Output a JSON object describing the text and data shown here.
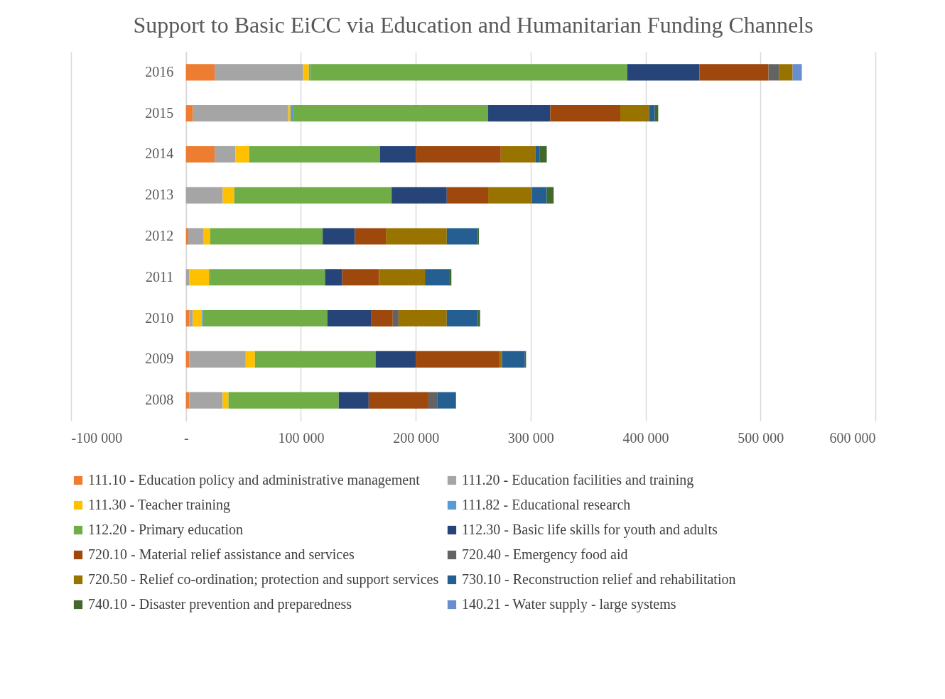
{
  "chart_data": {
    "type": "bar",
    "orientation": "horizontal",
    "stacked": true,
    "title": "Support to Basic EiCC via Education and Humanitarian Funding Channels",
    "categories": [
      "2016",
      "2015",
      "2014",
      "2013",
      "2012",
      "2011",
      "2010",
      "2009",
      "2008"
    ],
    "xlim": [
      -100000,
      600000
    ],
    "xticks": [
      {
        "value": -100000,
        "label": "-100 000"
      },
      {
        "value": 0,
        "label": "-"
      },
      {
        "value": 100000,
        "label": "100 000"
      },
      {
        "value": 200000,
        "label": "200 000"
      },
      {
        "value": 300000,
        "label": "300 000"
      },
      {
        "value": 400000,
        "label": "400 000"
      },
      {
        "value": 500000,
        "label": "500 000"
      },
      {
        "value": 600000,
        "label": "600 000"
      }
    ],
    "grid": "x",
    "legend": "bottom",
    "series": [
      {
        "name": "111.10 - Education policy and administrative management",
        "color": "#ed7d31",
        "values": [
          25000,
          6000,
          25000,
          0,
          2000,
          0,
          3000,
          3000,
          3000
        ]
      },
      {
        "name": "111.20 - Education facilities and training",
        "color": "#a5a5a5",
        "values": [
          77000,
          83000,
          18000,
          32000,
          13000,
          3000,
          3000,
          49000,
          29000
        ]
      },
      {
        "name": "111.30 - Teacher training",
        "color": "#ffc000",
        "values": [
          5000,
          2000,
          12000,
          10000,
          6000,
          17000,
          8000,
          8000,
          5000
        ]
      },
      {
        "name": "111.82 - Educational research",
        "color": "#5b9bd5",
        "values": [
          1000,
          2000,
          0,
          0,
          0,
          1000,
          1000,
          0,
          0
        ]
      },
      {
        "name": "112.20 - Primary education",
        "color": "#70ad47",
        "values": [
          276000,
          170000,
          114000,
          137000,
          98000,
          100000,
          108000,
          105000,
          96000
        ]
      },
      {
        "name": "112.30 - Basic life skills for youth and adults",
        "color": "#264478",
        "values": [
          63000,
          54000,
          31000,
          48000,
          28000,
          15000,
          38000,
          35000,
          26000
        ]
      },
      {
        "name": "720.10 - Material relief assistance and services",
        "color": "#9e480e",
        "values": [
          60000,
          61000,
          74000,
          36000,
          27000,
          32000,
          19000,
          73000,
          52000
        ]
      },
      {
        "name": "720.40 - Emergency food aid",
        "color": "#636363",
        "values": [
          9000,
          0,
          0,
          0,
          0,
          0,
          5000,
          0,
          8000
        ]
      },
      {
        "name": "720.50 - Relief co-ordination; protection and support services",
        "color": "#997300",
        "values": [
          12000,
          25000,
          30000,
          38000,
          53000,
          40000,
          42000,
          2000,
          0
        ]
      },
      {
        "name": "730.10 - Reconstruction relief and rehabilitation",
        "color": "#255e91",
        "values": [
          0,
          5000,
          4000,
          13000,
          27000,
          21000,
          27000,
          20000,
          16000
        ]
      },
      {
        "name": "740.10 - Disaster prevention and preparedness",
        "color": "#43682b",
        "values": [
          0,
          3000,
          6000,
          6000,
          1000,
          2000,
          2000,
          1000,
          0
        ]
      },
      {
        "name": "140.21 - Water supply - large systems",
        "color": "#698ed0",
        "values": [
          8000,
          0,
          0,
          0,
          0,
          0,
          0,
          0,
          0
        ]
      }
    ]
  }
}
